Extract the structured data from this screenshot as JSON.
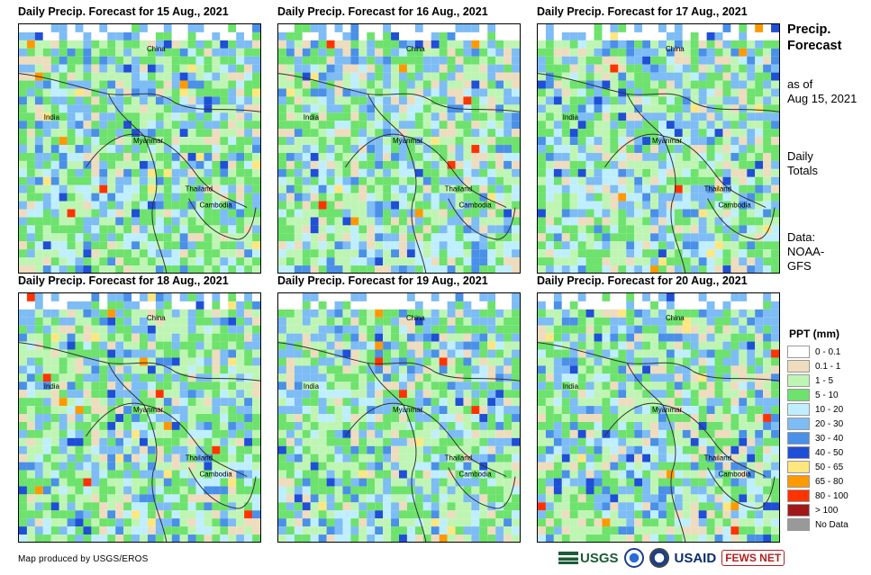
{
  "panels": [
    {
      "title": "Daily Precip. Forecast for 15 Aug., 2021",
      "col": 0,
      "row": 0,
      "seed": 11,
      "wet": 0.62
    },
    {
      "title": "Daily Precip. Forecast for 16 Aug., 2021",
      "col": 1,
      "row": 0,
      "seed": 23,
      "wet": 0.66
    },
    {
      "title": "Daily Precip. Forecast for 17 Aug., 2021",
      "col": 2,
      "row": 0,
      "seed": 37,
      "wet": 0.55
    },
    {
      "title": "Daily Precip. Forecast for 18 Aug., 2021",
      "col": 0,
      "row": 1,
      "seed": 41,
      "wet": 0.58
    },
    {
      "title": "Daily Precip. Forecast for 19 Aug., 2021",
      "col": 1,
      "row": 1,
      "seed": 53,
      "wet": 0.52
    },
    {
      "title": "Daily Precip. Forecast for 20 Aug., 2021",
      "col": 2,
      "row": 1,
      "seed": 67,
      "wet": 0.5
    }
  ],
  "place_labels": [
    "China",
    "India",
    "Myanmar",
    "Thailand",
    "Cambodia"
  ],
  "sidebar": {
    "title_line1": "Precip.",
    "title_line2": "Forecast",
    "asof_line1": "as of",
    "asof_line2": "Aug 15, 2021",
    "totals_line1": "Daily",
    "totals_line2": "Totals",
    "data_line1": "Data:",
    "data_line2": "NOAA-",
    "data_line3": "GFS"
  },
  "legend": {
    "title": "PPT (mm)",
    "items": [
      {
        "label": "0 - 0.1",
        "color": "#ffffff"
      },
      {
        "label": "0.1 - 1",
        "color": "#eedcbe"
      },
      {
        "label": "1 - 5",
        "color": "#bff5b4"
      },
      {
        "label": "5 - 10",
        "color": "#6de26d"
      },
      {
        "label": "10 - 20",
        "color": "#bfefff"
      },
      {
        "label": "20 - 30",
        "color": "#7dbcf5"
      },
      {
        "label": "30 - 40",
        "color": "#4a90e8"
      },
      {
        "label": "40 - 50",
        "color": "#1f4fd6"
      },
      {
        "label": "50 - 65",
        "color": "#ffe680"
      },
      {
        "label": "65 - 80",
        "color": "#ff9900"
      },
      {
        "label": "80 - 100",
        "color": "#ff3300"
      },
      {
        "label": "> 100",
        "color": "#a01818"
      },
      {
        "label": "No Data",
        "color": "#999999"
      }
    ]
  },
  "credit": "Map produced by USGS/EROS",
  "logos": {
    "usgs": "USGS",
    "usaid": "USAID",
    "fews": "FEWS NET"
  }
}
